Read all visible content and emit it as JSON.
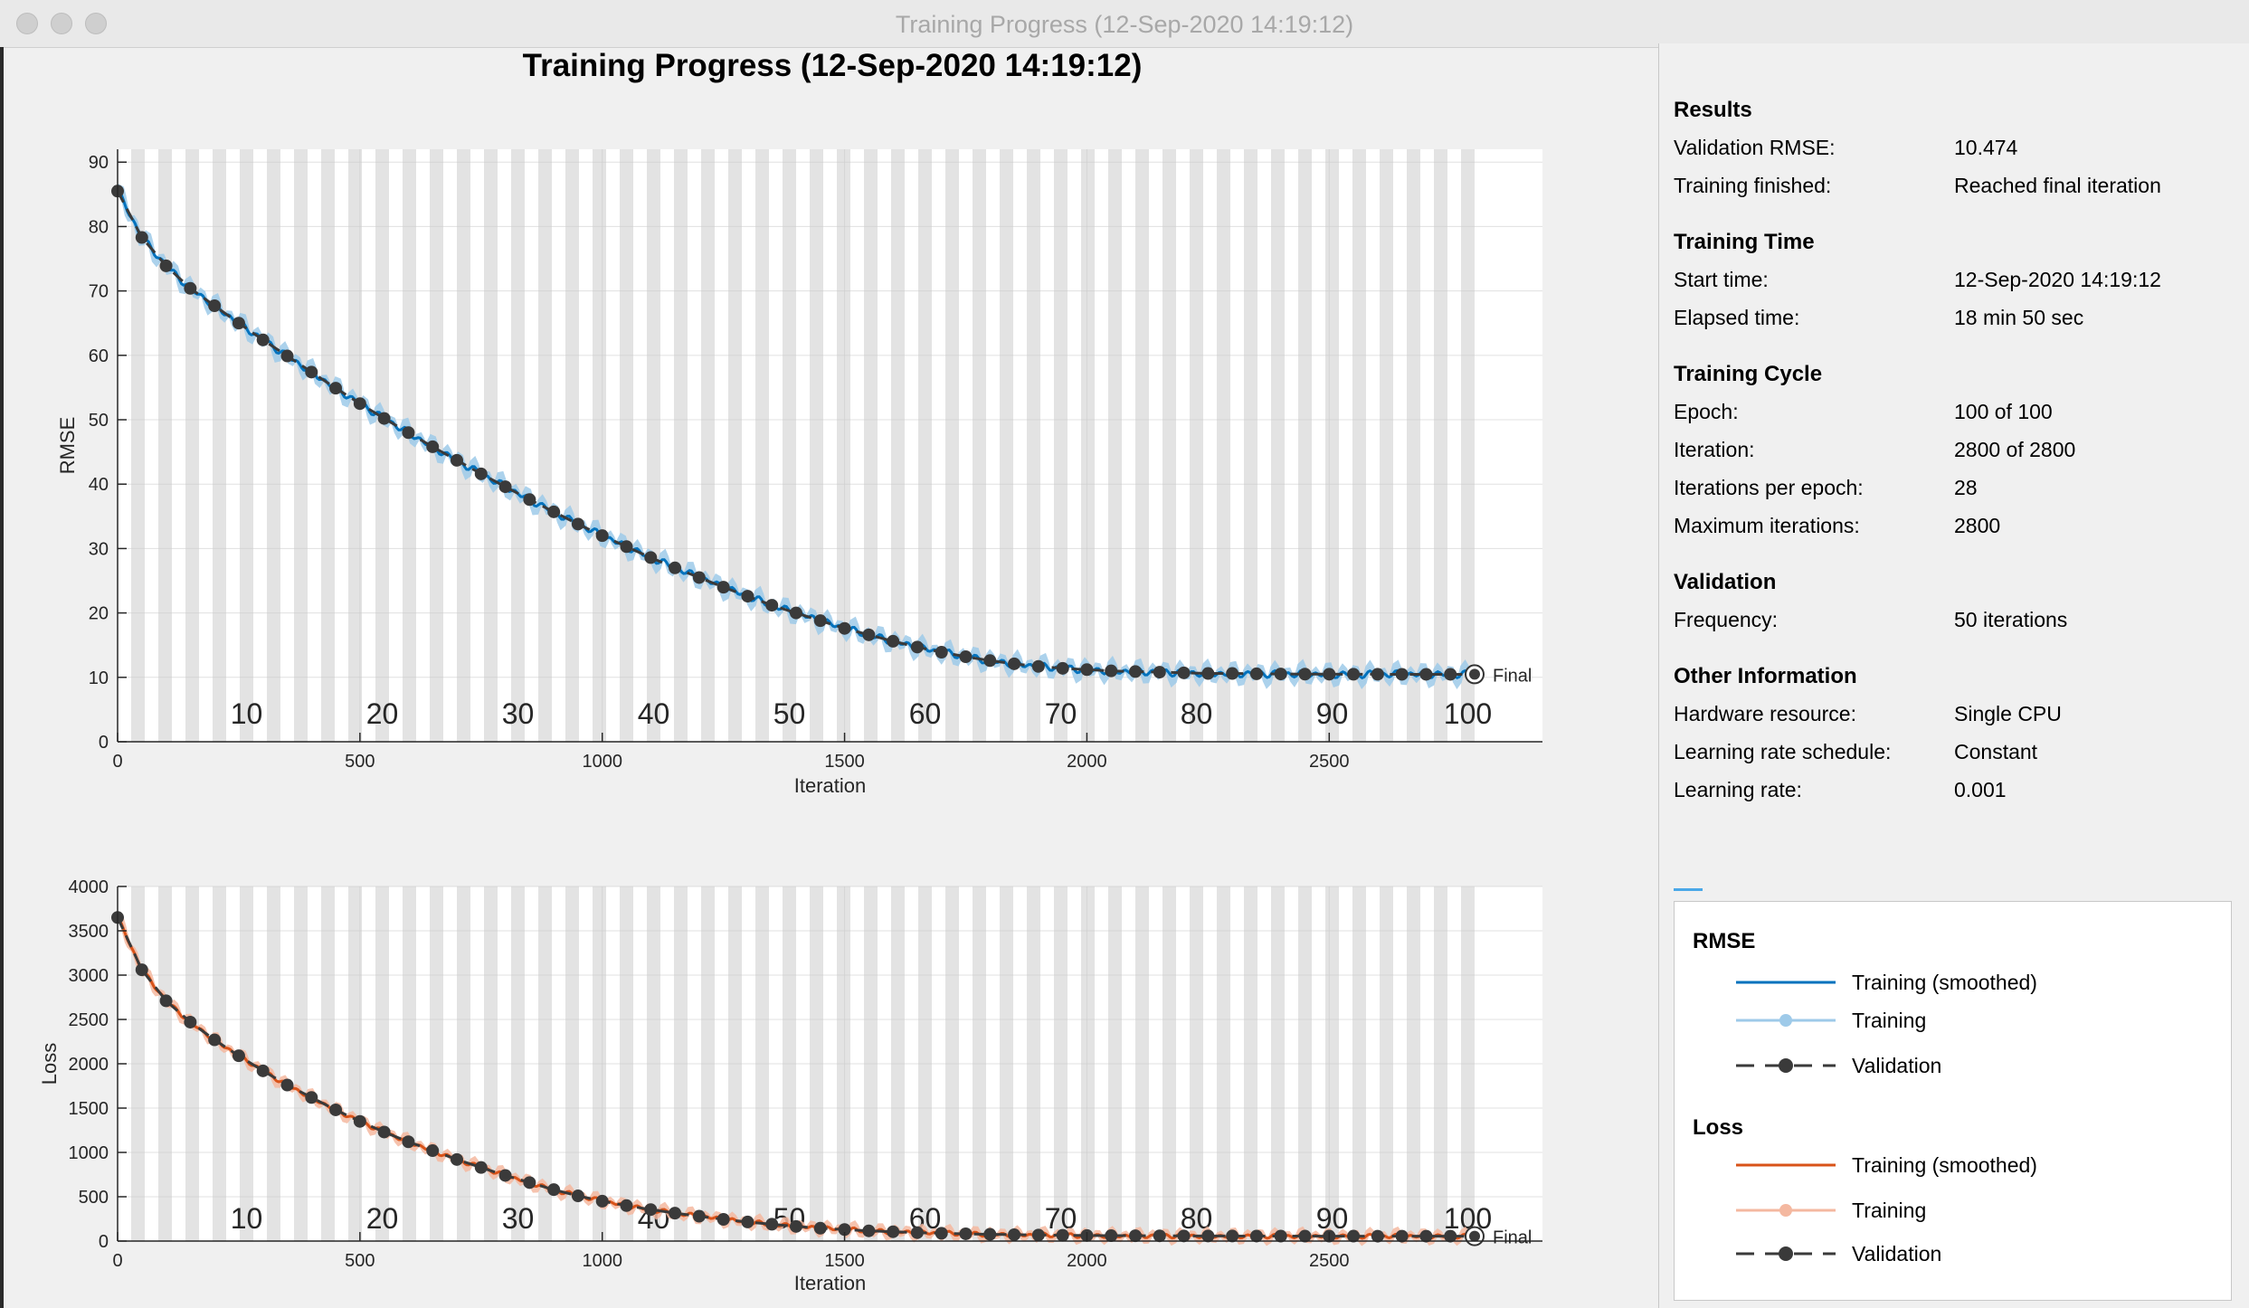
{
  "window": {
    "title": "Training Progress (12-Sep-2020 14:19:12)"
  },
  "colors": {
    "rmse_smoothed": "#0072bd",
    "rmse_training": "#9ecae9",
    "loss_smoothed": "#d95319",
    "loss_training": "#f4b8a0",
    "validation": "#3a3a3a",
    "epoch_band": "#e3e3e3"
  },
  "plot": {
    "title": "Training Progress (12-Sep-2020 14:19:12)",
    "final_label": "Final"
  },
  "chart_data": [
    {
      "type": "line",
      "name": "RMSE",
      "xlabel": "Iteration",
      "ylabel": "RMSE",
      "xlim": [
        0,
        2940
      ],
      "ylim": [
        0,
        92
      ],
      "xticks": [
        0,
        500,
        1000,
        1500,
        2000,
        2500
      ],
      "yticks": [
        0,
        10,
        20,
        30,
        40,
        50,
        60,
        70,
        80,
        90
      ],
      "epoch_labels": [
        10,
        20,
        30,
        40,
        50,
        60,
        70,
        80,
        90,
        100
      ],
      "iterations_per_epoch": 28,
      "validation_frequency": 50,
      "final_iteration": 2800,
      "final_validation": 10.474,
      "validation_points": [
        [
          0,
          85.5
        ],
        [
          50,
          78.3
        ],
        [
          100,
          73.9
        ],
        [
          150,
          70.4
        ],
        [
          200,
          67.7
        ],
        [
          250,
          65.0
        ],
        [
          300,
          62.4
        ],
        [
          350,
          59.9
        ],
        [
          400,
          57.4
        ],
        [
          450,
          54.9
        ],
        [
          500,
          52.5
        ],
        [
          550,
          50.2
        ],
        [
          600,
          48.0
        ],
        [
          650,
          45.8
        ],
        [
          700,
          43.7
        ],
        [
          750,
          41.6
        ],
        [
          800,
          39.6
        ],
        [
          850,
          37.6
        ],
        [
          900,
          35.7
        ],
        [
          950,
          33.8
        ],
        [
          1000,
          32.0
        ],
        [
          1050,
          30.3
        ],
        [
          1100,
          28.6
        ],
        [
          1150,
          27.0
        ],
        [
          1200,
          25.5
        ],
        [
          1250,
          24.0
        ],
        [
          1300,
          22.6
        ],
        [
          1350,
          21.2
        ],
        [
          1400,
          20.0
        ],
        [
          1450,
          18.8
        ],
        [
          1500,
          17.6
        ],
        [
          1550,
          16.6
        ],
        [
          1600,
          15.6
        ],
        [
          1650,
          14.7
        ],
        [
          1700,
          13.9
        ],
        [
          1750,
          13.2
        ],
        [
          1800,
          12.6
        ],
        [
          1850,
          12.1
        ],
        [
          1900,
          11.7
        ],
        [
          1950,
          11.4
        ],
        [
          2000,
          11.2
        ],
        [
          2050,
          11.0
        ],
        [
          2100,
          10.9
        ],
        [
          2150,
          10.8
        ],
        [
          2200,
          10.7
        ],
        [
          2250,
          10.6
        ],
        [
          2300,
          10.6
        ],
        [
          2350,
          10.55
        ],
        [
          2400,
          10.52
        ],
        [
          2450,
          10.5
        ],
        [
          2500,
          10.49
        ],
        [
          2550,
          10.48
        ],
        [
          2600,
          10.48
        ],
        [
          2650,
          10.47
        ],
        [
          2700,
          10.47
        ],
        [
          2750,
          10.47
        ],
        [
          2800,
          10.474
        ]
      ]
    },
    {
      "type": "line",
      "name": "Loss",
      "xlabel": "Iteration",
      "ylabel": "Loss",
      "xlim": [
        0,
        2940
      ],
      "ylim": [
        0,
        4000
      ],
      "xticks": [
        0,
        500,
        1000,
        1500,
        2000,
        2500
      ],
      "yticks": [
        0,
        500,
        1000,
        1500,
        2000,
        2500,
        3000,
        3500,
        4000
      ],
      "epoch_labels": [
        10,
        20,
        30,
        40,
        50,
        60,
        70,
        80,
        90,
        100
      ],
      "iterations_per_epoch": 28,
      "validation_frequency": 50,
      "final_iteration": 2800,
      "final_validation": 55,
      "validation_points": [
        [
          0,
          3650
        ],
        [
          50,
          3060
        ],
        [
          100,
          2710
        ],
        [
          150,
          2470
        ],
        [
          200,
          2270
        ],
        [
          250,
          2090
        ],
        [
          300,
          1920
        ],
        [
          350,
          1760
        ],
        [
          400,
          1620
        ],
        [
          450,
          1480
        ],
        [
          500,
          1350
        ],
        [
          550,
          1230
        ],
        [
          600,
          1120
        ],
        [
          650,
          1020
        ],
        [
          700,
          920
        ],
        [
          750,
          830
        ],
        [
          800,
          740
        ],
        [
          850,
          660
        ],
        [
          900,
          580
        ],
        [
          950,
          510
        ],
        [
          1000,
          450
        ],
        [
          1050,
          400
        ],
        [
          1100,
          355
        ],
        [
          1150,
          315
        ],
        [
          1200,
          280
        ],
        [
          1250,
          245
        ],
        [
          1300,
          215
        ],
        [
          1350,
          190
        ],
        [
          1400,
          165
        ],
        [
          1450,
          145
        ],
        [
          1500,
          130
        ],
        [
          1550,
          115
        ],
        [
          1600,
          105
        ],
        [
          1650,
          95
        ],
        [
          1700,
          88
        ],
        [
          1750,
          82
        ],
        [
          1800,
          76
        ],
        [
          1850,
          72
        ],
        [
          1900,
          68
        ],
        [
          1950,
          65
        ],
        [
          2000,
          63
        ],
        [
          2050,
          61
        ],
        [
          2100,
          60
        ],
        [
          2150,
          59
        ],
        [
          2200,
          58
        ],
        [
          2250,
          57.5
        ],
        [
          2300,
          57
        ],
        [
          2350,
          56.5
        ],
        [
          2400,
          56
        ],
        [
          2450,
          56
        ],
        [
          2500,
          55.5
        ],
        [
          2550,
          55.5
        ],
        [
          2600,
          55
        ],
        [
          2650,
          55
        ],
        [
          2700,
          55
        ],
        [
          2750,
          55
        ],
        [
          2800,
          55
        ]
      ]
    }
  ],
  "panel": {
    "results": {
      "heading": "Results",
      "rows": [
        {
          "k": "Validation RMSE:",
          "v": "10.474"
        },
        {
          "k": "Training finished:",
          "v": "Reached final iteration"
        }
      ]
    },
    "time": {
      "heading": "Training Time",
      "rows": [
        {
          "k": "Start time:",
          "v": "12-Sep-2020 14:19:12"
        },
        {
          "k": "Elapsed time:",
          "v": "18 min 50 sec"
        }
      ]
    },
    "cycle": {
      "heading": "Training Cycle",
      "rows": [
        {
          "k": "Epoch:",
          "v": "100 of 100"
        },
        {
          "k": "Iteration:",
          "v": "2800 of 2800"
        },
        {
          "k": "Iterations per epoch:",
          "v": "28"
        },
        {
          "k": "Maximum iterations:",
          "v": "2800"
        }
      ]
    },
    "validation": {
      "heading": "Validation",
      "rows": [
        {
          "k": "Frequency:",
          "v": "50 iterations"
        }
      ]
    },
    "other": {
      "heading": "Other Information",
      "rows": [
        {
          "k": "Hardware resource:",
          "v": "Single CPU"
        },
        {
          "k": "Learning rate schedule:",
          "v": "Constant"
        },
        {
          "k": "Learning rate:",
          "v": "0.001"
        }
      ]
    }
  },
  "legend": {
    "rmse": {
      "heading": "RMSE",
      "smoothed": "Training (smoothed)",
      "training": "Training",
      "validation": "Validation"
    },
    "loss": {
      "heading": "Loss",
      "smoothed": "Training (smoothed)",
      "training": "Training",
      "validation": "Validation"
    }
  }
}
